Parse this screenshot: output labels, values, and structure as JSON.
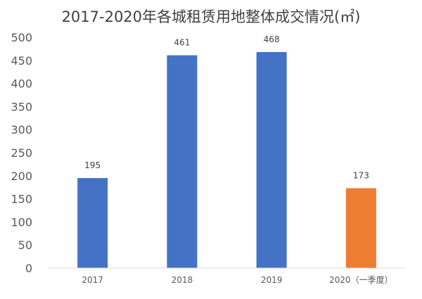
{
  "chart_data": {
    "type": "bar",
    "title": "2017-2020年各城租赁用地整体成交情况(㎡)",
    "categories": [
      "2017",
      "2018",
      "2019",
      "2020（一季度）"
    ],
    "values": [
      195,
      461,
      468,
      173
    ],
    "bar_colors": [
      "#4472C4",
      "#4472C4",
      "#4472C4",
      "#ED7D31"
    ],
    "ylim": [
      0,
      500
    ],
    "yticks": [
      0,
      50,
      100,
      150,
      200,
      250,
      300,
      350,
      400,
      450,
      500
    ],
    "xlabel": "",
    "ylabel": "",
    "grid": false,
    "data_labels": true
  }
}
